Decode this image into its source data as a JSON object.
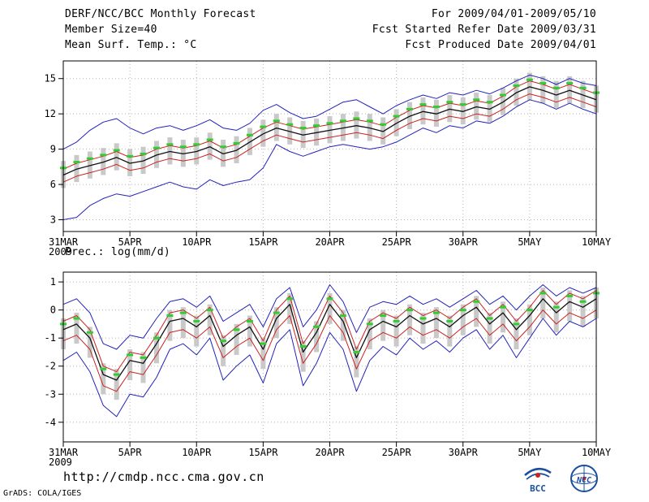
{
  "header": {
    "title": "DERF/NCC/BCC Monthly Forecast",
    "member_size": "Member Size=40",
    "var1_label": "Mean Surf. Temp.: °C",
    "for_range": "For 2009/04/01-2009/05/10",
    "fcst_refer": "Fcst Started Refer Date 2009/03/31",
    "fcst_produced": "Fcst Produced Date 2009/04/01"
  },
  "panel2_title": "Prec.: log(mm/d)",
  "footer": {
    "url": "http://cmdp.ncc.cma.gov.cn",
    "credit": "GrADS: COLA/IGES",
    "logo1": "BCC",
    "logo2": "NCC"
  },
  "colors": {
    "text": "#000000",
    "envelope_blue": "#2222bb",
    "quartile_red": "#cc2222",
    "mean_black": "#111111",
    "median_green": "#33cc33",
    "spread_gray": "#c9c9c9",
    "logo_blue": "#1a4fa0",
    "logo_red": "#cc2222"
  },
  "chart_data": [
    {
      "type": "line",
      "title": "Mean Surf. Temp.: °C",
      "grid_color": "#b4b4b4",
      "x_axis": {
        "count": 41,
        "tick_indices": [
          0,
          5,
          10,
          15,
          20,
          25,
          30,
          35,
          40
        ],
        "tick_labels": [
          "31MAR",
          "5APR",
          "10APR",
          "15APR",
          "20APR",
          "25APR",
          "30APR",
          "5MAY",
          "10MAY"
        ],
        "year_label": "2009"
      },
      "ylim": [
        2.0,
        16.5
      ],
      "yticks": [
        3,
        6,
        9,
        12,
        15
      ],
      "series": [
        {
          "name": "ensemble-spread-bar",
          "style": "bar-range",
          "color": "#c9c9c9",
          "low": [
            5.7,
            6.2,
            6.5,
            6.8,
            7.2,
            6.7,
            6.9,
            7.4,
            7.7,
            7.5,
            7.7,
            8.1,
            7.5,
            7.8,
            8.5,
            9.2,
            9.7,
            9.4,
            9.1,
            9.3,
            9.5,
            9.7,
            9.9,
            9.7,
            9.4,
            10.1,
            10.7,
            11.1,
            10.9,
            11.3,
            11.1,
            11.5,
            11.3,
            11.9,
            12.7,
            13.2,
            12.9,
            12.5,
            12.9,
            12.5,
            12.1
          ],
          "high": [
            8.0,
            8.5,
            8.8,
            9.1,
            9.5,
            9.0,
            9.2,
            9.7,
            10.0,
            9.8,
            10.0,
            10.4,
            9.8,
            10.1,
            10.8,
            11.5,
            12.0,
            11.7,
            11.4,
            11.6,
            11.8,
            12.0,
            12.2,
            12.0,
            11.7,
            12.4,
            13.0,
            13.4,
            13.2,
            13.6,
            13.4,
            13.8,
            13.6,
            14.2,
            15.0,
            15.5,
            15.2,
            14.8,
            15.2,
            14.8,
            14.4
          ]
        },
        {
          "name": "ensemble-max",
          "style": "line",
          "color": "#2222bb",
          "values": [
            9.0,
            9.6,
            10.6,
            11.3,
            11.6,
            10.8,
            10.3,
            10.8,
            11.0,
            10.6,
            11.0,
            11.5,
            10.8,
            10.6,
            11.2,
            12.3,
            12.8,
            12.1,
            11.6,
            11.8,
            12.4,
            13.0,
            13.2,
            12.6,
            12.0,
            12.7,
            13.2,
            13.6,
            13.3,
            13.8,
            13.6,
            14.0,
            13.7,
            14.2,
            14.8,
            15.3,
            15.0,
            14.5,
            15.0,
            14.6,
            14.4
          ]
        },
        {
          "name": "ensemble-min",
          "style": "line",
          "color": "#2222bb",
          "values": [
            3.0,
            3.2,
            4.2,
            4.8,
            5.2,
            5.0,
            5.4,
            5.8,
            6.2,
            5.8,
            5.6,
            6.4,
            5.9,
            6.2,
            6.4,
            7.4,
            9.4,
            8.8,
            8.4,
            8.8,
            9.2,
            9.4,
            9.2,
            9.0,
            9.2,
            9.6,
            10.2,
            10.8,
            10.4,
            11.0,
            10.8,
            11.4,
            11.2,
            11.8,
            12.6,
            13.2,
            12.9,
            12.4,
            12.9,
            12.4,
            12.0
          ]
        },
        {
          "name": "upper-quartile",
          "style": "line",
          "color": "#cc2222",
          "values": [
            7.3,
            7.8,
            8.1,
            8.4,
            8.8,
            8.3,
            8.5,
            9.0,
            9.3,
            9.1,
            9.3,
            9.7,
            9.1,
            9.4,
            10.1,
            10.8,
            11.3,
            11.0,
            10.7,
            10.9,
            11.1,
            11.3,
            11.5,
            11.3,
            11.0,
            11.7,
            12.3,
            12.7,
            12.5,
            12.9,
            12.7,
            13.1,
            12.9,
            13.5,
            14.3,
            14.8,
            14.5,
            14.1,
            14.5,
            14.1,
            13.7
          ]
        },
        {
          "name": "lower-quartile",
          "style": "line",
          "color": "#cc2222",
          "values": [
            6.2,
            6.7,
            7.0,
            7.3,
            7.7,
            7.2,
            7.4,
            7.9,
            8.2,
            8.0,
            8.2,
            8.6,
            8.0,
            8.3,
            9.0,
            9.7,
            10.2,
            9.9,
            9.6,
            9.8,
            10.0,
            10.2,
            10.4,
            10.2,
            9.9,
            10.6,
            11.2,
            11.6,
            11.4,
            11.8,
            11.6,
            12.0,
            11.8,
            12.4,
            13.2,
            13.7,
            13.4,
            13.0,
            13.4,
            13.0,
            12.6
          ]
        },
        {
          "name": "ensemble-mean",
          "style": "line",
          "color": "#111111",
          "width": 1.3,
          "values": [
            6.8,
            7.3,
            7.6,
            7.9,
            8.3,
            7.8,
            8.0,
            8.5,
            8.8,
            8.6,
            8.8,
            9.2,
            8.6,
            8.9,
            9.6,
            10.3,
            10.8,
            10.5,
            10.2,
            10.4,
            10.6,
            10.8,
            11.0,
            10.8,
            10.5,
            11.2,
            11.8,
            12.2,
            12.0,
            12.4,
            12.2,
            12.6,
            12.4,
            13.0,
            13.8,
            14.3,
            14.0,
            13.6,
            14.0,
            13.6,
            13.2
          ]
        },
        {
          "name": "ensemble-median",
          "style": "dash-markers",
          "color": "#33cc33",
          "values": [
            7.4,
            7.9,
            8.2,
            8.5,
            8.9,
            8.4,
            8.6,
            9.1,
            9.4,
            9.2,
            9.4,
            9.8,
            9.2,
            9.5,
            10.2,
            10.9,
            11.4,
            11.1,
            10.8,
            11.0,
            11.2,
            11.4,
            11.6,
            11.4,
            11.1,
            11.8,
            12.4,
            12.8,
            12.6,
            13.0,
            12.8,
            13.2,
            13.0,
            13.6,
            14.4,
            14.9,
            14.6,
            14.2,
            14.6,
            14.2,
            13.8
          ]
        }
      ]
    },
    {
      "type": "line",
      "title": "Prec.: log(mm/d)",
      "grid_color": "#b4b4b4",
      "x_axis": {
        "count": 41,
        "tick_indices": [
          0,
          5,
          10,
          15,
          20,
          25,
          30,
          35,
          40
        ],
        "tick_labels": [
          "31MAR",
          "5APR",
          "10APR",
          "15APR",
          "20APR",
          "25APR",
          "30APR",
          "5MAY",
          "10MAY"
        ],
        "year_label": "2009"
      },
      "ylim": [
        -4.7,
        1.35
      ],
      "yticks": [
        -4,
        -3,
        -2,
        -1,
        0,
        1
      ],
      "series": [
        {
          "name": "ensemble-spread-bar",
          "style": "bar-range",
          "color": "#c9c9c9",
          "low": [
            -1.4,
            -1.2,
            -1.7,
            -3.0,
            -3.2,
            -2.5,
            -2.6,
            -1.9,
            -1.1,
            -1.0,
            -1.3,
            -0.9,
            -2.0,
            -1.6,
            -1.3,
            -2.1,
            -1.0,
            -0.5,
            -2.2,
            -1.5,
            -0.5,
            -1.1,
            -2.4,
            -1.4,
            -1.1,
            -1.3,
            -0.9,
            -1.2,
            -1.0,
            -1.3,
            -0.9,
            -0.6,
            -1.2,
            -0.8,
            -1.4,
            -0.9,
            -0.3,
            -0.8,
            -0.4,
            -0.6,
            -0.3
          ],
          "high": [
            -0.3,
            -0.1,
            -0.6,
            -1.9,
            -2.1,
            -1.4,
            -1.5,
            -0.8,
            0.0,
            0.1,
            -0.2,
            0.2,
            -0.9,
            -0.5,
            -0.2,
            -1.0,
            0.1,
            0.6,
            -1.1,
            -0.4,
            0.6,
            0.0,
            -1.3,
            -0.3,
            0.0,
            -0.2,
            0.2,
            -0.1,
            0.1,
            -0.2,
            0.2,
            0.5,
            -0.1,
            0.3,
            -0.3,
            0.2,
            0.8,
            0.3,
            0.7,
            0.5,
            0.8
          ]
        },
        {
          "name": "ensemble-max",
          "style": "line",
          "color": "#2222bb",
          "values": [
            0.2,
            0.4,
            -0.1,
            -1.2,
            -1.4,
            -0.9,
            -1.0,
            -0.3,
            0.3,
            0.4,
            0.1,
            0.5,
            -0.4,
            -0.1,
            0.2,
            -0.6,
            0.4,
            0.8,
            -0.6,
            0.0,
            0.9,
            0.3,
            -0.8,
            0.1,
            0.3,
            0.2,
            0.5,
            0.2,
            0.4,
            0.1,
            0.4,
            0.7,
            0.2,
            0.5,
            0.0,
            0.5,
            0.9,
            0.5,
            0.8,
            0.6,
            0.8
          ]
        },
        {
          "name": "ensemble-min",
          "style": "line",
          "color": "#2222bb",
          "values": [
            -1.8,
            -1.5,
            -2.2,
            -3.4,
            -3.8,
            -3.0,
            -3.1,
            -2.4,
            -1.4,
            -1.2,
            -1.6,
            -1.0,
            -2.5,
            -2.0,
            -1.6,
            -2.6,
            -1.2,
            -0.7,
            -2.7,
            -1.9,
            -0.8,
            -1.4,
            -2.9,
            -1.8,
            -1.3,
            -1.6,
            -1.0,
            -1.4,
            -1.1,
            -1.5,
            -1.0,
            -0.7,
            -1.4,
            -0.9,
            -1.7,
            -1.0,
            -0.3,
            -0.9,
            -0.4,
            -0.6,
            -0.3
          ]
        },
        {
          "name": "upper-quartile",
          "style": "line",
          "color": "#cc2222",
          "values": [
            -0.4,
            -0.2,
            -0.7,
            -2.0,
            -2.2,
            -1.5,
            -1.6,
            -0.9,
            -0.1,
            0.0,
            -0.3,
            0.1,
            -1.0,
            -0.6,
            -0.3,
            -1.1,
            0.0,
            0.5,
            -1.2,
            -0.5,
            0.5,
            -0.1,
            -1.4,
            -0.4,
            -0.1,
            -0.3,
            0.1,
            -0.2,
            0.0,
            -0.3,
            0.1,
            0.4,
            -0.2,
            0.2,
            -0.4,
            0.1,
            0.7,
            0.2,
            0.6,
            0.4,
            0.7
          ]
        },
        {
          "name": "lower-quartile",
          "style": "line",
          "color": "#cc2222",
          "values": [
            -1.1,
            -0.9,
            -1.4,
            -2.7,
            -2.9,
            -2.2,
            -2.3,
            -1.6,
            -0.8,
            -0.7,
            -1.0,
            -0.6,
            -1.7,
            -1.3,
            -1.0,
            -1.8,
            -0.7,
            -0.2,
            -1.9,
            -1.2,
            -0.2,
            -0.8,
            -2.1,
            -1.1,
            -0.8,
            -1.0,
            -0.6,
            -0.9,
            -0.7,
            -1.0,
            -0.6,
            -0.3,
            -0.9,
            -0.5,
            -1.1,
            -0.6,
            0.0,
            -0.5,
            -0.1,
            -0.3,
            0.0
          ]
        },
        {
          "name": "ensemble-mean",
          "style": "line",
          "color": "#111111",
          "width": 1.3,
          "values": [
            -0.7,
            -0.5,
            -1.0,
            -2.3,
            -2.5,
            -1.8,
            -1.9,
            -1.2,
            -0.4,
            -0.3,
            -0.6,
            -0.2,
            -1.3,
            -0.9,
            -0.6,
            -1.4,
            -0.3,
            0.2,
            -1.5,
            -0.8,
            0.2,
            -0.4,
            -1.7,
            -0.7,
            -0.4,
            -0.6,
            -0.2,
            -0.5,
            -0.3,
            -0.6,
            -0.2,
            0.1,
            -0.5,
            -0.1,
            -0.7,
            -0.2,
            0.4,
            -0.1,
            0.3,
            0.1,
            0.4
          ]
        },
        {
          "name": "ensemble-median",
          "style": "dash-markers",
          "color": "#33cc33",
          "values": [
            -0.5,
            -0.3,
            -0.8,
            -2.1,
            -2.3,
            -1.6,
            -1.7,
            -1.0,
            -0.2,
            -0.1,
            -0.4,
            0.0,
            -1.1,
            -0.7,
            -0.4,
            -1.2,
            -0.1,
            0.4,
            -1.3,
            -0.6,
            0.4,
            -0.2,
            -1.5,
            -0.5,
            -0.2,
            -0.4,
            0.0,
            -0.3,
            -0.1,
            -0.4,
            0.0,
            0.3,
            -0.3,
            0.1,
            -0.5,
            0.0,
            0.6,
            0.1,
            0.5,
            0.3,
            0.6
          ]
        }
      ]
    }
  ]
}
